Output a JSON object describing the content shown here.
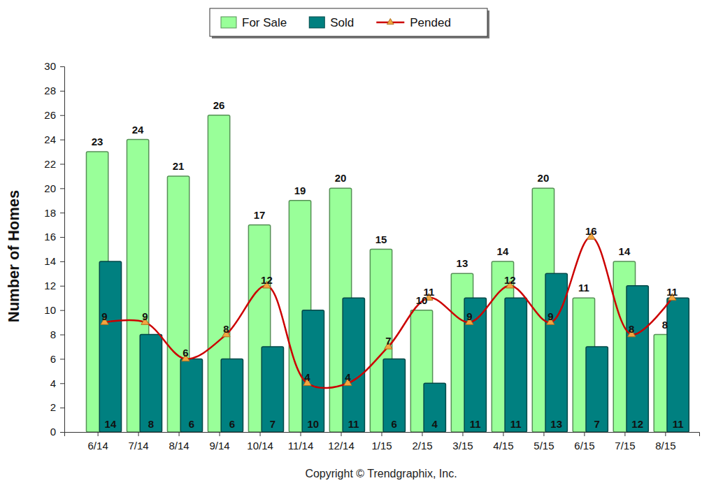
{
  "chart_data": {
    "type": "bar",
    "ylabel": "Number of Homes",
    "annotations": [
      "Copyright © Trendgraphix, Inc."
    ],
    "categories": [
      "6/14",
      "7/14",
      "8/14",
      "9/14",
      "10/14",
      "11/14",
      "12/14",
      "1/15",
      "2/15",
      "3/15",
      "4/15",
      "5/15",
      "6/15",
      "7/15",
      "8/15"
    ],
    "series": [
      {
        "name": "For Sale",
        "type": "bar",
        "color": "#99ff99",
        "values": [
          23,
          24,
          21,
          26,
          17,
          19,
          20,
          15,
          10,
          13,
          14,
          20,
          11,
          14,
          8
        ]
      },
      {
        "name": "Sold",
        "type": "bar",
        "color": "#008080",
        "values": [
          14,
          8,
          6,
          6,
          7,
          10,
          11,
          6,
          4,
          11,
          11,
          13,
          7,
          12,
          11
        ]
      },
      {
        "name": "Pended",
        "type": "line",
        "color": "#cc0000",
        "marker": "triangle",
        "line_style": "solid",
        "values": [
          9,
          9,
          6,
          8,
          12,
          4,
          4,
          7,
          11,
          9,
          12,
          9,
          16,
          8,
          11
        ]
      }
    ],
    "ylim": [
      0,
      30
    ],
    "yticks": [
      0,
      2,
      4,
      6,
      8,
      10,
      12,
      14,
      16,
      18,
      20,
      22,
      24,
      26,
      28,
      30
    ],
    "grid": false,
    "legend": "top",
    "data_labels": true
  }
}
